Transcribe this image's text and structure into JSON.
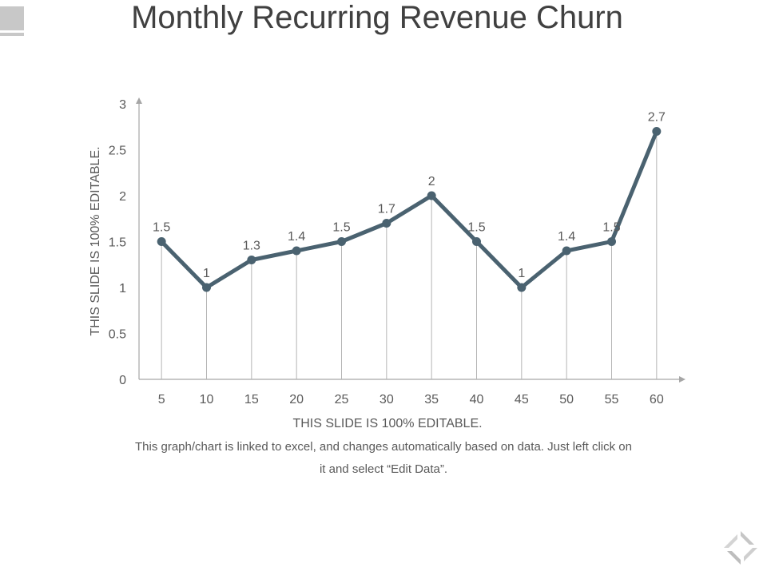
{
  "slide": {
    "title": "Monthly Recurring Revenue Churn",
    "caption_line1": "This graph/chart is linked to excel, and changes automatically based on data. Just left click on",
    "caption_line2": "it and select “Edit Data”."
  },
  "chart_data": {
    "type": "line",
    "title": "Monthly Recurring Revenue Churn",
    "xlabel": "THIS SLIDE IS 100% EDITABLE.",
    "ylabel": "THIS SLIDE IS 100% EDITABLE.",
    "x": [
      5,
      10,
      15,
      20,
      25,
      30,
      35,
      40,
      45,
      50,
      55,
      60
    ],
    "values": [
      1.5,
      1,
      1.3,
      1.4,
      1.5,
      1.7,
      2,
      1.5,
      1,
      1.4,
      1.5,
      2.7
    ],
    "data_labels": [
      "1.5",
      "1",
      "1.3",
      "1.4",
      "1.5",
      "1.7",
      "2",
      "1.5",
      "1",
      "1.4",
      "1.5",
      "2.7"
    ],
    "y_ticks": [
      "0",
      "0.5",
      "1",
      "1.5",
      "2",
      "2.5",
      "3"
    ],
    "ylim": [
      0,
      3
    ],
    "grid": false,
    "drop_lines": true,
    "legend": "none",
    "line_color": "#4a6270",
    "axis_color": "#a6a6a6"
  }
}
